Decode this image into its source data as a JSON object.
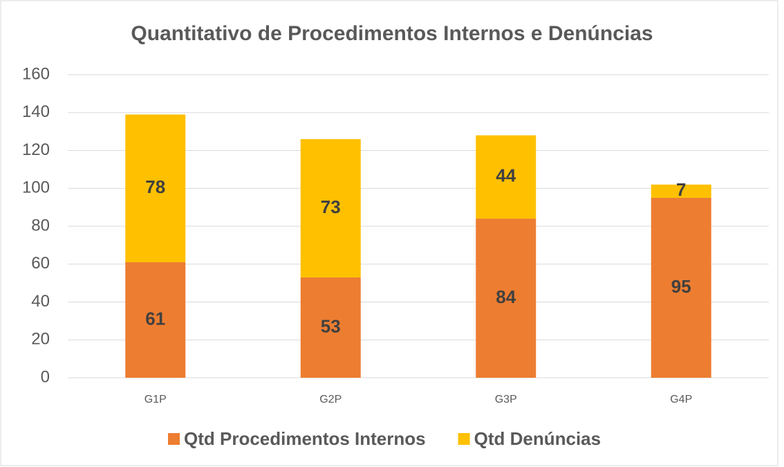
{
  "chart_data": {
    "type": "stacked_bar",
    "title": "Quantitativo de Procedimentos Internos e Denúncias",
    "categories": [
      "G1P",
      "G2P",
      "G3P",
      "G4P"
    ],
    "series": [
      {
        "name": "Qtd Procedimentos Internos",
        "color": "#ed7d31",
        "values": [
          61,
          53,
          84,
          95
        ]
      },
      {
        "name": "Qtd Denúncias",
        "color": "#ffc000",
        "values": [
          78,
          73,
          44,
          7
        ]
      }
    ],
    "ylim": [
      0,
      160
    ],
    "yticks": [
      0,
      20,
      40,
      60,
      80,
      100,
      120,
      140,
      160
    ],
    "grid": true,
    "legend": "bottom"
  }
}
